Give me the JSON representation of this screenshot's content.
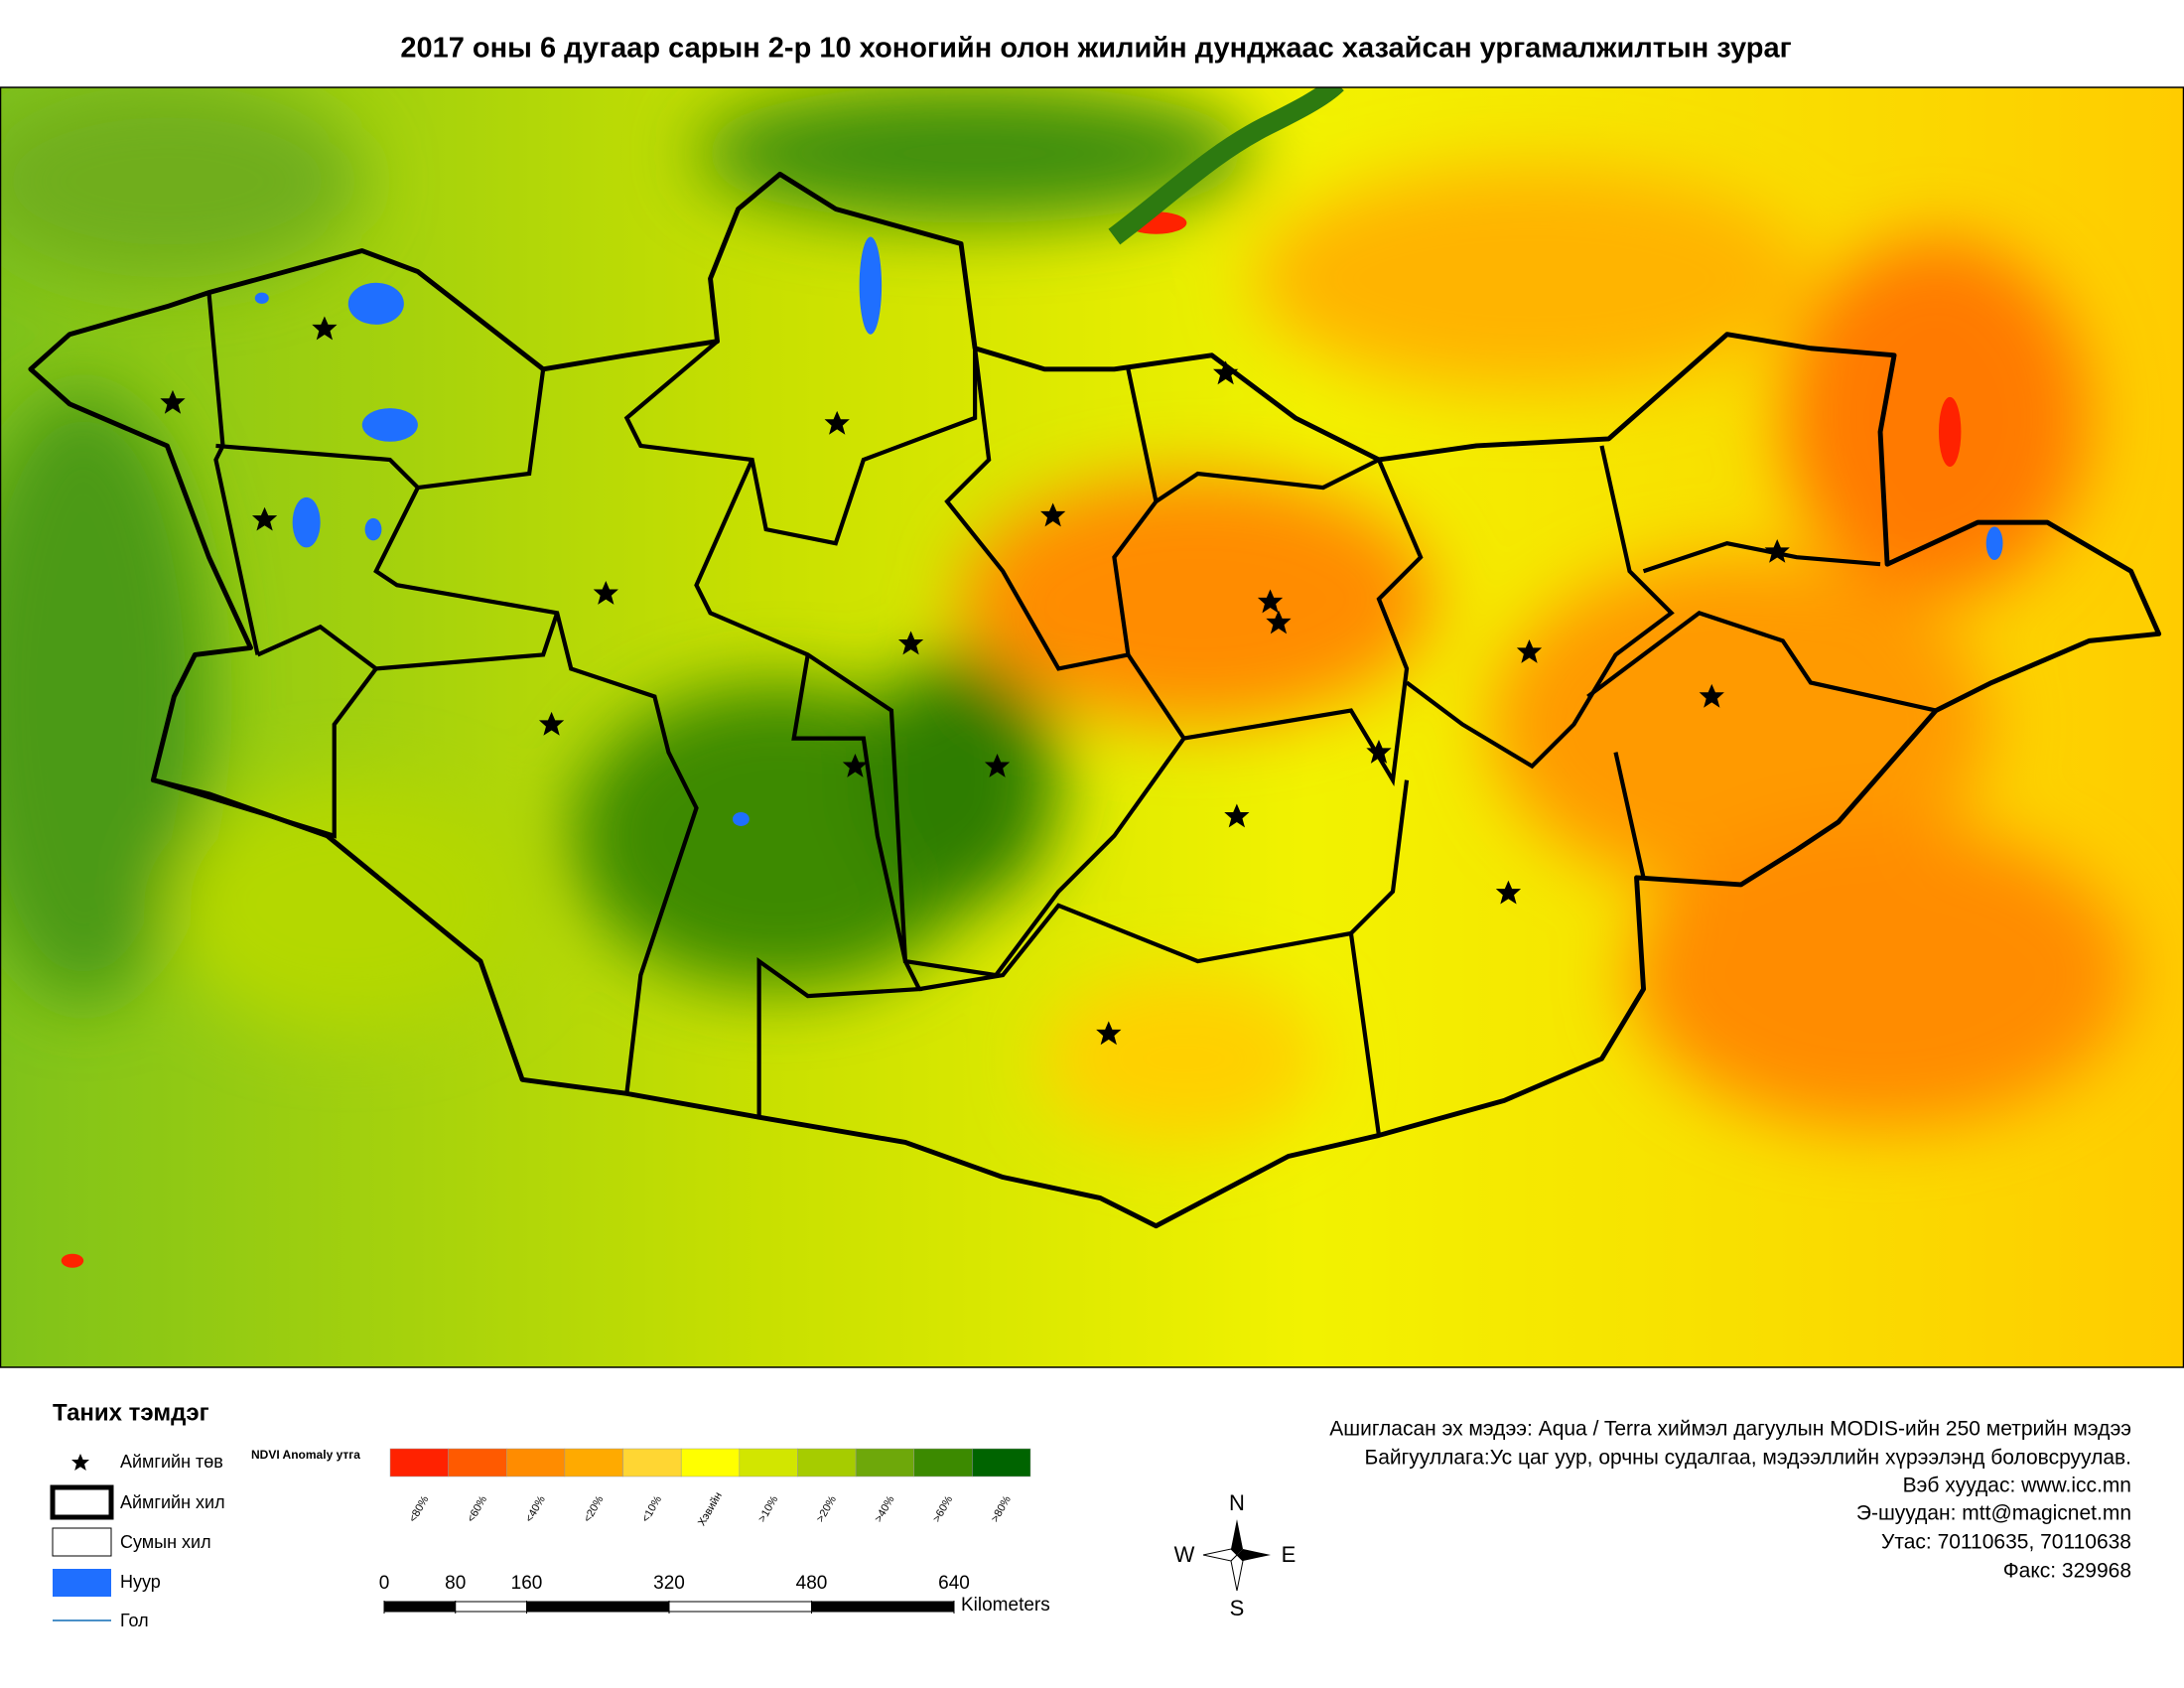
{
  "title": "2017 оны 6 дугаар сарын 2-р 10 хоногийн олон жилийн дунджаас хазайсан ургамалжилтын зураг",
  "legend": {
    "title": "Таних тэмдэг",
    "items": [
      "Аймгийн төв",
      "Аймгийн хил",
      "Сумын хил",
      "Нуур",
      "Гол"
    ]
  },
  "color_scale": {
    "title": "NDVI Anomaly утга",
    "classes": [
      {
        "label": "<80%",
        "color": "#ff2200"
      },
      {
        "label": "<60%",
        "color": "#ff5a00"
      },
      {
        "label": "<40%",
        "color": "#ff8c00"
      },
      {
        "label": "<20%",
        "color": "#ffaa00"
      },
      {
        "label": "<10%",
        "color": "#ffd633"
      },
      {
        "label": "Хэвийн",
        "color": "#ffff00"
      },
      {
        "label": ">10%",
        "color": "#d2e600"
      },
      {
        "label": ">20%",
        "color": "#a6cc00"
      },
      {
        "label": ">40%",
        "color": "#6ea80a"
      },
      {
        "label": ">60%",
        "color": "#3c8a00"
      },
      {
        "label": ">80%",
        "color": "#006400"
      }
    ]
  },
  "scale_bar": {
    "ticks": [
      0,
      80,
      160,
      320,
      480,
      640
    ],
    "unit": "Kilometers"
  },
  "compass": {
    "n": "N",
    "e": "E",
    "s": "S",
    "w": "W"
  },
  "info": [
    "Ашигласан эх мэдээ: Aqua / Terra хиймэл дагуулын MODIS-ийн 250 метрийн мэдээ",
    "Байгууллага:Ус цаг уур, орчны судалгаа, мэдээллийн хүрээлэнд боловсруулав.",
    "Вэб хуудас: www.icc.mn",
    "Э-шуудан: mtt@magicnet.mn",
    "Утас: 70110635, 70110638",
    "Факс: 329968"
  ]
}
